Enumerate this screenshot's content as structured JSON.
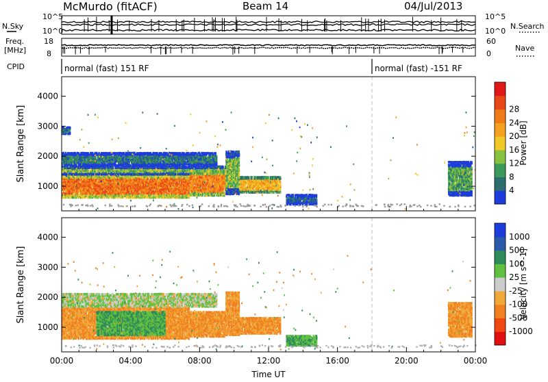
{
  "header": {
    "station": "McMurdo (fitACF)",
    "beam": "Beam 14",
    "date": "04/Jul/2013"
  },
  "params": {
    "nsky_label": "N.Sky",
    "nsearch_label": "N.Search",
    "nsky_ticks": [
      "10^5",
      "10^0"
    ],
    "nsearch_ticks": [
      "10^5",
      "10^0"
    ],
    "freq_label": "Freq.",
    "freq_unit": "[MHz]",
    "freq_ticks": [
      "18",
      "8"
    ],
    "nave_label": "Nave",
    "nave_ticks": [
      "60",
      "0"
    ],
    "cpid_label": "CPID",
    "cpid_modes": [
      {
        "name": "normal (fast) 151 RF",
        "start_hour": 0
      },
      {
        "name": "normal (fast) -151 RF",
        "start_hour": 18
      }
    ]
  },
  "colors": {
    "power_bar": [
      "#1e3cdc",
      "#2d6e6e",
      "#3c9a5a",
      "#88c040",
      "#f0c828",
      "#f5a020",
      "#f07a18",
      "#e84818",
      "#e01818"
    ],
    "velocity_bar": [
      "#e01010",
      "#f04810",
      "#f08020",
      "#f0a838",
      "#cccccc",
      "#60c040",
      "#2e8c5a",
      "#2a5aaa",
      "#1e3cdc"
    ]
  },
  "chart_data": [
    {
      "type": "heatmap",
      "quantity": "Power",
      "ylabel": "Slant Range [km]",
      "ylim": [
        180,
        4650
      ],
      "yticks": [
        "1000",
        "2000",
        "3000",
        "4000"
      ],
      "xlabel": "",
      "xlim": [
        0,
        24
      ],
      "xticks": [
        "00:00",
        "04:00",
        "08:00",
        "12:00",
        "16:00",
        "20:00",
        "00:00"
      ],
      "colorbar": {
        "label": "Power [dB]",
        "range": [
          0,
          32
        ],
        "ticks": [
          "4",
          "8",
          "12",
          "16",
          "20",
          "24",
          "28"
        ]
      },
      "echo_regions": [
        {
          "t0": 0.0,
          "t1": 7.4,
          "r0": 580,
          "r1": 1380,
          "value": 24
        },
        {
          "t0": 0.0,
          "t1": 9.5,
          "r0": 1350,
          "r1": 1650,
          "value": 12
        },
        {
          "t0": 7.4,
          "t1": 9.5,
          "r0": 650,
          "r1": 1500,
          "value": 22
        },
        {
          "t0": 9.5,
          "t1": 10.3,
          "r0": 700,
          "r1": 2150,
          "value": 12
        },
        {
          "t0": 10.3,
          "t1": 12.7,
          "r0": 750,
          "r1": 1300,
          "value": 18
        },
        {
          "t0": 0.0,
          "t1": 9.0,
          "r0": 1650,
          "r1": 2100,
          "value": 6
        },
        {
          "t0": 0.0,
          "t1": 0.5,
          "r0": 2700,
          "r1": 2950,
          "value": 6
        },
        {
          "t0": 13.0,
          "t1": 14.8,
          "r0": 350,
          "r1": 700,
          "value": 4
        },
        {
          "t0": 22.4,
          "t1": 23.8,
          "r0": 650,
          "r1": 1800,
          "value": 10
        }
      ]
    },
    {
      "type": "heatmap",
      "quantity": "Velocity",
      "ylabel": "Slant Range [km]",
      "ylim": [
        180,
        4650
      ],
      "yticks": [
        "1000",
        "2000",
        "3000",
        "4000"
      ],
      "xlabel": "Time UT",
      "xlim": [
        0,
        24
      ],
      "xticks": [
        "00:00",
        "04:00",
        "08:00",
        "12:00",
        "16:00",
        "20:00",
        "00:00"
      ],
      "colorbar": {
        "label": "Velocity [m s^-1]",
        "ticks": [
          "-1000",
          "-500",
          "-100",
          "-25",
          "25",
          "100",
          "500",
          "1000"
        ]
      },
      "echo_regions": [
        {
          "t0": 0.0,
          "t1": 7.4,
          "r0": 580,
          "r1": 1650,
          "value": -100
        },
        {
          "t0": 2.0,
          "t1": 6.0,
          "r0": 700,
          "r1": 1500,
          "value": 100
        },
        {
          "t0": 7.4,
          "t1": 9.5,
          "r0": 650,
          "r1": 1500,
          "value": -100
        },
        {
          "t0": 9.5,
          "t1": 10.3,
          "r0": 700,
          "r1": 2150,
          "value": -100
        },
        {
          "t0": 10.3,
          "t1": 12.7,
          "r0": 750,
          "r1": 1300,
          "value": -100
        },
        {
          "t0": 0.0,
          "t1": 9.0,
          "r0": 1650,
          "r1": 2100,
          "value": 25
        },
        {
          "t0": 13.0,
          "t1": 14.8,
          "r0": 350,
          "r1": 700,
          "value": 100
        },
        {
          "t0": 22.4,
          "t1": 23.8,
          "r0": 650,
          "r1": 1800,
          "value": -100
        }
      ]
    }
  ]
}
